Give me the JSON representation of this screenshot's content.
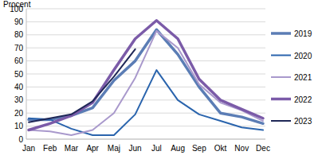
{
  "chart_data": {
    "type": "line",
    "y_label": "Procent",
    "categories": [
      "Jan",
      "Feb",
      "Mar",
      "Apr",
      "Maj",
      "Jun",
      "Jul",
      "Aug",
      "Sep",
      "Okt",
      "Nov",
      "Dec"
    ],
    "series": [
      {
        "name": "2019",
        "color": "#5b7db5",
        "values": [
          15,
          15,
          18,
          24,
          45,
          60,
          84,
          65,
          40,
          20,
          17,
          12
        ]
      },
      {
        "name": "2020",
        "color": "#2a64ad",
        "values": [
          16,
          15,
          8,
          3,
          3,
          19,
          53,
          30,
          19,
          14,
          9,
          7
        ]
      },
      {
        "name": "2021",
        "color": "#a999cc",
        "values": [
          7,
          6,
          3,
          7,
          20,
          47,
          83,
          70,
          42,
          28,
          22,
          14
        ]
      },
      {
        "name": "2022",
        "color": "#7b5ba8",
        "values": [
          7,
          12,
          18,
          28,
          53,
          77,
          91,
          77,
          46,
          30,
          23,
          16
        ]
      },
      {
        "name": "2023",
        "color": "#1f2757",
        "values": [
          13,
          16,
          19,
          29,
          48,
          69,
          null,
          null,
          null,
          null,
          null,
          null
        ]
      }
    ],
    "ylim": [
      0,
      100
    ],
    "yticks": [
      0,
      10,
      20,
      30,
      40,
      50,
      60,
      70,
      80,
      90,
      100
    ],
    "grid": true,
    "legend": "right"
  }
}
